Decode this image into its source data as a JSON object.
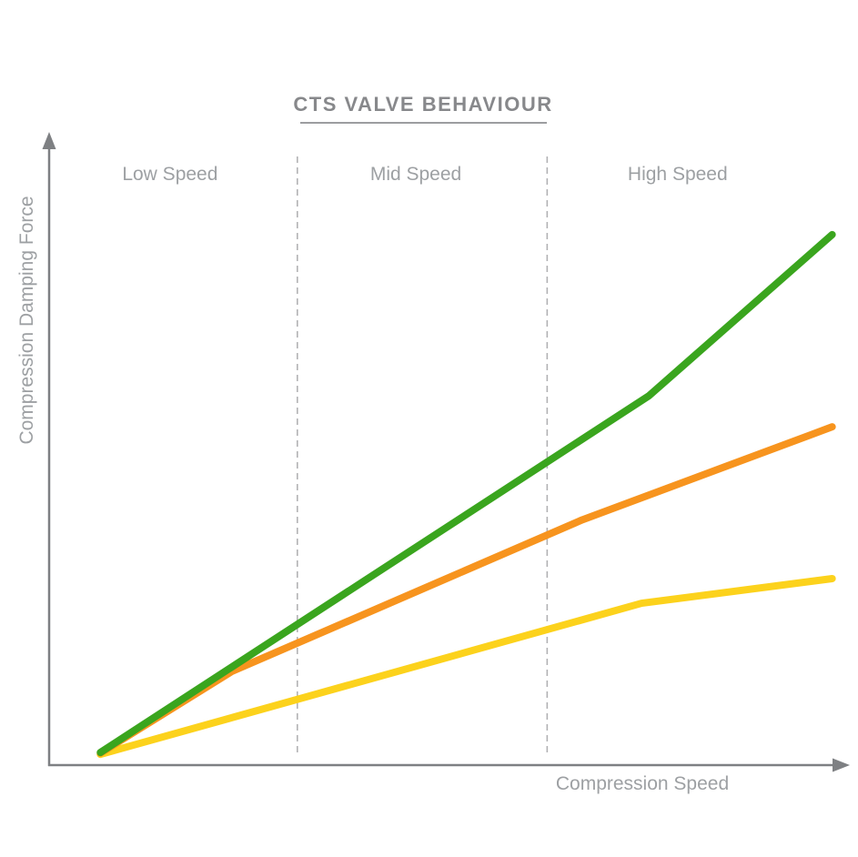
{
  "title": "CTS VALVE BEHAVIOUR",
  "axes": {
    "x_label": "Compression Speed",
    "y_label": "Compression Damping Force"
  },
  "colors": {
    "green_line": "#3aa51e",
    "orange_line": "#f7941e",
    "yellow_line": "#fcd21c",
    "axis_gray": "#7e8083",
    "label_gray": "#9da0a3",
    "title_gray": "#87888b",
    "separator_gray": "#b2b2b4"
  },
  "chart_data": {
    "type": "line",
    "title": "CTS VALVE BEHAVIOUR",
    "xlabel": "Compression Speed",
    "ylabel": "Compression Damping Force",
    "xlim": [
      0,
      100
    ],
    "ylim": [
      0,
      100
    ],
    "grid": false,
    "legend": "none",
    "tick_labels": "none",
    "zones": [
      {
        "label": "Low Speed",
        "x_range": [
          0,
          31
        ],
        "label_center_x": 15.1
      },
      {
        "label": "Mid Speed",
        "x_range": [
          31,
          62.2
        ],
        "label_center_x": 45.8
      },
      {
        "label": "High Speed",
        "x_range": [
          62.2,
          100
        ],
        "label_center_x": 78.5
      }
    ],
    "separators_x": [
      31.0,
      62.2
    ],
    "series": [
      {
        "name": "yellow-line",
        "color": "#fcd21c",
        "points": [
          [
            6.4,
            1.7
          ],
          [
            74.0,
            25.6
          ],
          [
            97.8,
            29.5
          ]
        ]
      },
      {
        "name": "orange-line",
        "color": "#f7941e",
        "points": [
          [
            6.4,
            1.9
          ],
          [
            22.8,
            14.8
          ],
          [
            66.6,
            38.8
          ],
          [
            97.8,
            53.5
          ]
        ]
      },
      {
        "name": "green-line",
        "color": "#3aa51e",
        "points": [
          [
            6.4,
            2.0
          ],
          [
            74.9,
            58.4
          ],
          [
            97.8,
            83.9
          ]
        ]
      }
    ]
  }
}
